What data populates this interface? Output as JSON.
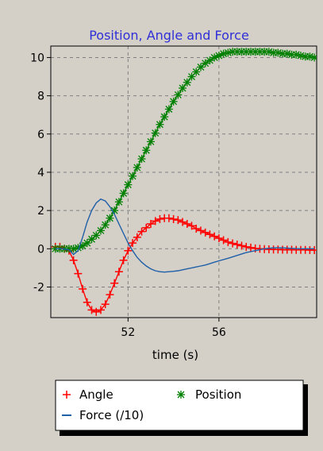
{
  "chart_data": {
    "type": "line",
    "title": "Position, Angle and Force",
    "xlabel": "time (s)",
    "ylabel": "",
    "xlim": [
      48.6,
      60.3
    ],
    "ylim": [
      -3.6,
      10.6
    ],
    "xticks": [
      52,
      56
    ],
    "yticks": [
      -2,
      0,
      2,
      4,
      6,
      8,
      10
    ],
    "grid": true,
    "legend": {
      "placement": "bottom",
      "entries": [
        {
          "label": "Angle",
          "marker": "+",
          "color": "#ff0000"
        },
        {
          "label": "Position",
          "marker": "*",
          "color": "#008000"
        },
        {
          "label": "Force (/10)",
          "marker": "line",
          "color": "#1f5fa8"
        }
      ]
    },
    "series": [
      {
        "name": "Angle",
        "color": "#ff0000",
        "marker": "+",
        "x": [
          48.8,
          49.0,
          49.2,
          49.4,
          49.6,
          49.8,
          50.0,
          50.2,
          50.4,
          50.6,
          50.8,
          51.0,
          51.2,
          51.4,
          51.6,
          51.8,
          52.0,
          52.2,
          52.4,
          52.6,
          52.8,
          53.0,
          53.2,
          53.4,
          53.6,
          53.8,
          54.0,
          54.2,
          54.4,
          54.6,
          54.8,
          55.0,
          55.2,
          55.4,
          55.6,
          55.8,
          56.0,
          56.2,
          56.4,
          56.6,
          56.8,
          57.0,
          57.2,
          57.4,
          57.6,
          57.8,
          58.0,
          58.2,
          58.4,
          58.6,
          58.8,
          59.0,
          59.2,
          59.4,
          59.6,
          59.8,
          60.0,
          60.2
        ],
        "y": [
          0.1,
          0.1,
          0.0,
          -0.1,
          -0.6,
          -1.3,
          -2.1,
          -2.8,
          -3.2,
          -3.3,
          -3.2,
          -2.9,
          -2.4,
          -1.8,
          -1.2,
          -0.6,
          -0.1,
          0.3,
          0.6,
          0.9,
          1.1,
          1.3,
          1.45,
          1.55,
          1.6,
          1.6,
          1.55,
          1.5,
          1.4,
          1.3,
          1.2,
          1.05,
          0.95,
          0.85,
          0.75,
          0.65,
          0.55,
          0.45,
          0.35,
          0.28,
          0.22,
          0.16,
          0.1,
          0.06,
          0.02,
          0.0,
          -0.02,
          -0.03,
          -0.04,
          -0.04,
          -0.05,
          -0.05,
          -0.05,
          -0.06,
          -0.06,
          -0.06,
          -0.07,
          -0.07
        ]
      },
      {
        "name": "Position",
        "color": "#008000",
        "marker": "*",
        "x": [
          48.8,
          49.0,
          49.2,
          49.4,
          49.6,
          49.8,
          50.0,
          50.2,
          50.4,
          50.6,
          50.8,
          51.0,
          51.2,
          51.4,
          51.6,
          51.8,
          52.0,
          52.2,
          52.4,
          52.6,
          52.8,
          53.0,
          53.2,
          53.4,
          53.6,
          53.8,
          54.0,
          54.2,
          54.4,
          54.6,
          54.8,
          55.0,
          55.2,
          55.4,
          55.6,
          55.8,
          56.0,
          56.2,
          56.4,
          56.6,
          56.8,
          57.0,
          57.2,
          57.4,
          57.6,
          57.8,
          58.0,
          58.2,
          58.4,
          58.6,
          58.8,
          59.0,
          59.2,
          59.4,
          59.6,
          59.8,
          60.0,
          60.2
        ],
        "y": [
          0.0,
          0.0,
          0.0,
          0.0,
          0.0,
          0.05,
          0.15,
          0.3,
          0.5,
          0.7,
          0.95,
          1.25,
          1.6,
          2.0,
          2.45,
          2.9,
          3.35,
          3.8,
          4.25,
          4.7,
          5.15,
          5.6,
          6.05,
          6.5,
          6.9,
          7.3,
          7.7,
          8.05,
          8.4,
          8.7,
          9.0,
          9.25,
          9.5,
          9.7,
          9.85,
          10.0,
          10.1,
          10.2,
          10.25,
          10.3,
          10.3,
          10.3,
          10.3,
          10.3,
          10.3,
          10.3,
          10.3,
          10.3,
          10.25,
          10.25,
          10.2,
          10.2,
          10.15,
          10.15,
          10.1,
          10.05,
          10.05,
          10.0
        ]
      },
      {
        "name": "Force (/10)",
        "color": "#1f5fa8",
        "marker": "none",
        "x": [
          48.8,
          49.1,
          49.4,
          49.6,
          49.8,
          50.0,
          50.2,
          50.4,
          50.6,
          50.8,
          51.0,
          51.2,
          51.4,
          51.6,
          51.8,
          52.0,
          52.2,
          52.4,
          52.6,
          52.8,
          53.0,
          53.2,
          53.4,
          53.6,
          53.8,
          54.0,
          54.2,
          54.4,
          54.6,
          54.8,
          55.0,
          55.2,
          55.4,
          55.6,
          55.8,
          56.0,
          56.4,
          56.8,
          57.2,
          57.6,
          58.0,
          58.4,
          58.8,
          59.2,
          59.6,
          60.0,
          60.2
        ],
        "y": [
          0.0,
          0.0,
          -0.05,
          -0.3,
          -0.1,
          0.6,
          1.4,
          2.0,
          2.4,
          2.6,
          2.5,
          2.2,
          1.8,
          1.3,
          0.8,
          0.3,
          -0.1,
          -0.45,
          -0.7,
          -0.9,
          -1.05,
          -1.15,
          -1.2,
          -1.22,
          -1.2,
          -1.18,
          -1.15,
          -1.1,
          -1.05,
          -1.0,
          -0.95,
          -0.9,
          -0.85,
          -0.78,
          -0.7,
          -0.63,
          -0.5,
          -0.35,
          -0.2,
          -0.1,
          0.0,
          0.05,
          0.05,
          0.02,
          0.0,
          0.0,
          0.0
        ]
      }
    ]
  }
}
